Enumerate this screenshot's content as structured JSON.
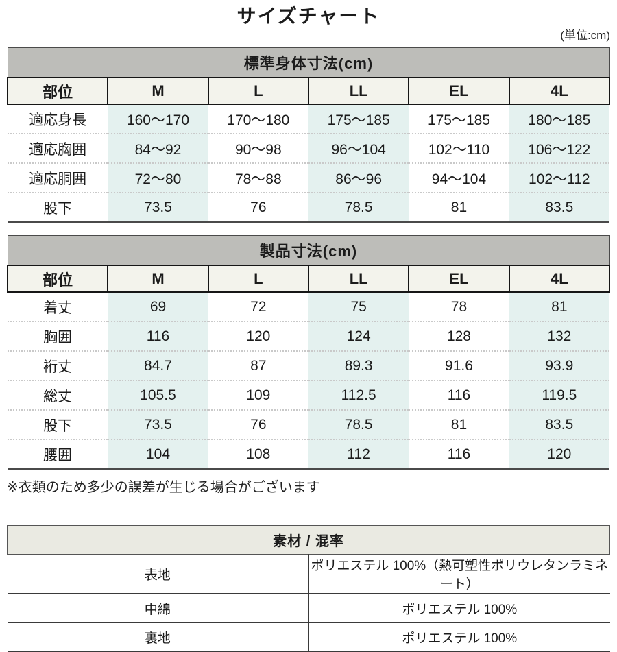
{
  "page": {
    "title": "サイズチャート",
    "unit_label": "(単位:cm)",
    "note": "※衣類のため多少の誤差が生じる場合がございます"
  },
  "colors": {
    "caption_band_bg": "#bdbdb9",
    "size_header_bg": "#f3f3ec",
    "highlight_column_bg": "#e4f1ef",
    "material_band_bg": "#eaeae2",
    "dotted_separator": "#c9c9c9"
  },
  "body_table": {
    "caption": "標準身体寸法(cm)",
    "columns": [
      "部位",
      "M",
      "L",
      "LL",
      "EL",
      "4L"
    ],
    "rows": [
      {
        "label": "適応身長",
        "values": [
          "160〜170",
          "170〜180",
          "175〜185",
          "175〜185",
          "180〜185"
        ]
      },
      {
        "label": "適応胸囲",
        "values": [
          "84〜92",
          "90〜98",
          "96〜104",
          "102〜110",
          "106〜122"
        ]
      },
      {
        "label": "適応胴囲",
        "values": [
          "72〜80",
          "78〜88",
          "86〜96",
          "94〜104",
          "102〜112"
        ]
      },
      {
        "label": "股下",
        "values": [
          "73.5",
          "76",
          "78.5",
          "81",
          "83.5"
        ]
      }
    ]
  },
  "product_table": {
    "caption": "製品寸法(cm)",
    "columns": [
      "部位",
      "M",
      "L",
      "LL",
      "EL",
      "4L"
    ],
    "rows": [
      {
        "label": "着丈",
        "values": [
          "69",
          "72",
          "75",
          "78",
          "81"
        ]
      },
      {
        "label": "胸囲",
        "values": [
          "116",
          "120",
          "124",
          "128",
          "132"
        ]
      },
      {
        "label": "裄丈",
        "values": [
          "84.7",
          "87",
          "89.3",
          "91.6",
          "93.9"
        ]
      },
      {
        "label": "総丈",
        "values": [
          "105.5",
          "109",
          "112.5",
          "116",
          "119.5"
        ]
      },
      {
        "label": "股下",
        "values": [
          "73.5",
          "76",
          "78.5",
          "81",
          "83.5"
        ]
      },
      {
        "label": "腰囲",
        "values": [
          "104",
          "108",
          "112",
          "116",
          "120"
        ]
      }
    ]
  },
  "material_table": {
    "caption": "素材 / 混率",
    "rows": [
      {
        "label": "表地",
        "value": "ポリエステル 100%（熱可塑性ポリウレタンラミネート）"
      },
      {
        "label": "中綿",
        "value": "ポリエステル 100%"
      },
      {
        "label": "裏地",
        "value": "ポリエステル 100%"
      }
    ]
  }
}
